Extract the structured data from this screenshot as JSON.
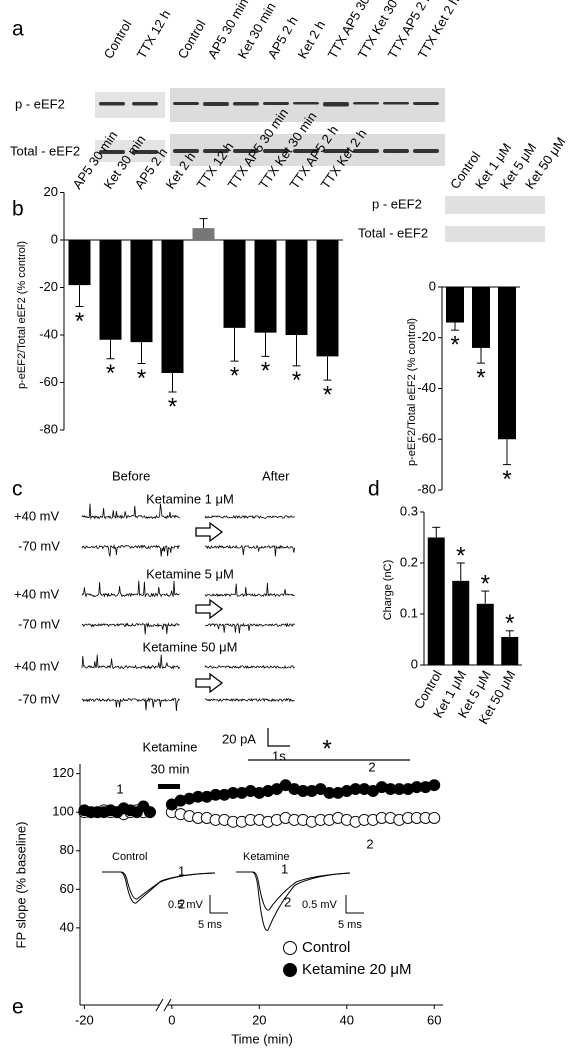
{
  "panel_labels": [
    "a",
    "b",
    "c",
    "d",
    "e"
  ],
  "blot_a": {
    "lanes_left": [
      "Control",
      "TTX 12 h"
    ],
    "lanes_right": [
      "Control",
      "AP5 30 min",
      "Ket 30 min",
      "AP5 2 h",
      "Ket 2 h",
      "TTX AP5 30 min",
      "TTX Ket 30 min",
      "TTX AP5 2 h",
      "TTX Ket 2 h"
    ],
    "rows": [
      "p - eEF2",
      "Total - eEF2"
    ]
  },
  "blot_b": {
    "lanes": [
      "Control",
      "Ket 1 μM",
      "Ket 5 μM",
      "Ket 50 μM"
    ],
    "rows": [
      "p - eEF2",
      "Total - eEF2"
    ]
  },
  "traces_c": {
    "before": "Before",
    "after": "After",
    "conditions": [
      {
        "name": "Ketamine 1 μM",
        "holding": [
          "+40 mV",
          "-70 mV"
        ]
      },
      {
        "name": "Ketamine 5 μM",
        "holding": [
          "+40 mV",
          "-70 mV"
        ]
      },
      {
        "name": "Ketamine 50 μM",
        "holding": [
          "+40 mV",
          "-70 mV"
        ]
      }
    ],
    "scale_current": "20 pA",
    "scale_time": "1s"
  },
  "chart_data": [
    {
      "type": "bar",
      "ylabel": "p-eEF2/Total eEF2 (% control)",
      "categories": [
        "AP5 30 min",
        "Ket 30 min",
        "AP5 2 h",
        "Ket 2 h",
        "TTX 12 h",
        "TTX AP5 30 min",
        "TTX Ket 30 min",
        "TTX AP5 2 h",
        "TTX Ket 2 h"
      ],
      "values": [
        -19,
        -42,
        -43,
        -56,
        5,
        -37,
        -39,
        -40,
        -49
      ],
      "errors": [
        9,
        8,
        9,
        8,
        4,
        14,
        10,
        13,
        10
      ],
      "annotations": [
        "*",
        "*",
        "*",
        "*",
        null,
        "*",
        "*",
        "*",
        "*"
      ],
      "colors": [
        "#000000",
        "#000000",
        "#000000",
        "#000000",
        "#777777",
        "#000000",
        "#000000",
        "#000000",
        "#000000"
      ],
      "ylim": [
        -80,
        20
      ],
      "yticks": [
        20,
        0,
        -20,
        -40,
        -60,
        -80
      ]
    },
    {
      "type": "bar",
      "ylabel": "p-eEF2/Total eEF2 (% control)",
      "values": [
        -14,
        -24,
        -60
      ],
      "errors": [
        3,
        6,
        10
      ],
      "annotations": [
        "*",
        "*",
        "*"
      ],
      "color": "#000000",
      "ylim": [
        -80,
        0
      ],
      "yticks": [
        0,
        -20,
        -40,
        -60,
        -80
      ]
    },
    {
      "type": "bar",
      "ylabel": "Charge (nC)",
      "categories": [
        "Control",
        "Ket 1 μM",
        "Ket 5 μM",
        "Ket 50 μM"
      ],
      "values": [
        0.25,
        0.165,
        0.12,
        0.055
      ],
      "errors": [
        0.02,
        0.035,
        0.025,
        0.012
      ],
      "annotations": [
        null,
        "*",
        "*",
        "*"
      ],
      "color": "#000000",
      "ylim": [
        0,
        0.3
      ],
      "yticks": [
        0,
        0.1,
        0.2,
        0.3
      ]
    },
    {
      "type": "scatter",
      "xlabel": "Time (min)",
      "ylabel": "FP slope (% baseline)",
      "x": [
        -20,
        -18.5,
        -17,
        -15.5,
        -14,
        -12.5,
        -11,
        -9.5,
        -8,
        -6.5,
        -5,
        0,
        2,
        4,
        6,
        8,
        10,
        12,
        14,
        16,
        18,
        20,
        22,
        24,
        26,
        28,
        30,
        32,
        34,
        36,
        38,
        40,
        42,
        44,
        46,
        48,
        50,
        52,
        54,
        56,
        58,
        60
      ],
      "series": [
        {
          "name": "Control",
          "color": "#ffffff",
          "values": [
            100,
            100,
            100,
            101,
            100,
            100,
            99,
            100,
            101,
            100,
            100,
            100,
            99,
            98,
            97,
            97,
            96,
            96,
            95,
            95,
            96,
            96,
            95,
            96,
            97,
            96,
            96,
            95,
            96,
            96,
            97,
            96,
            95,
            96,
            96,
            97,
            97,
            96,
            97,
            97,
            97,
            97
          ]
        },
        {
          "name": "Ketamine 20 μM",
          "color": "#000000",
          "values": [
            101,
            100,
            100,
            100,
            101,
            100,
            102,
            101,
            100,
            103,
            100,
            104,
            106,
            107,
            108,
            108,
            109,
            109,
            110,
            110,
            111,
            110,
            111,
            112,
            114,
            112,
            111,
            111,
            112,
            110,
            110,
            111,
            112,
            112,
            111,
            113,
            112,
            112,
            112,
            113,
            113,
            114
          ]
        }
      ],
      "xlim": [
        -21,
        62
      ],
      "xticks": [
        -20,
        0,
        20,
        40,
        60
      ],
      "ylim": [
        0,
        125
      ],
      "yticks": [
        40,
        60,
        80,
        100,
        120
      ],
      "annotations": {
        "drug": "Ketamine",
        "duration": "30 min",
        "significance": "*",
        "phase_labels": [
          "1",
          "2",
          "2"
        ]
      },
      "insets": [
        {
          "title": "Control",
          "labels": [
            "1",
            "2"
          ],
          "scale_v": "0.5 mV",
          "scale_t": "5 ms"
        },
        {
          "title": "Ketamine",
          "labels": [
            "1",
            "2"
          ],
          "scale_v": "0.5 mV",
          "scale_t": "5 ms"
        }
      ]
    }
  ]
}
